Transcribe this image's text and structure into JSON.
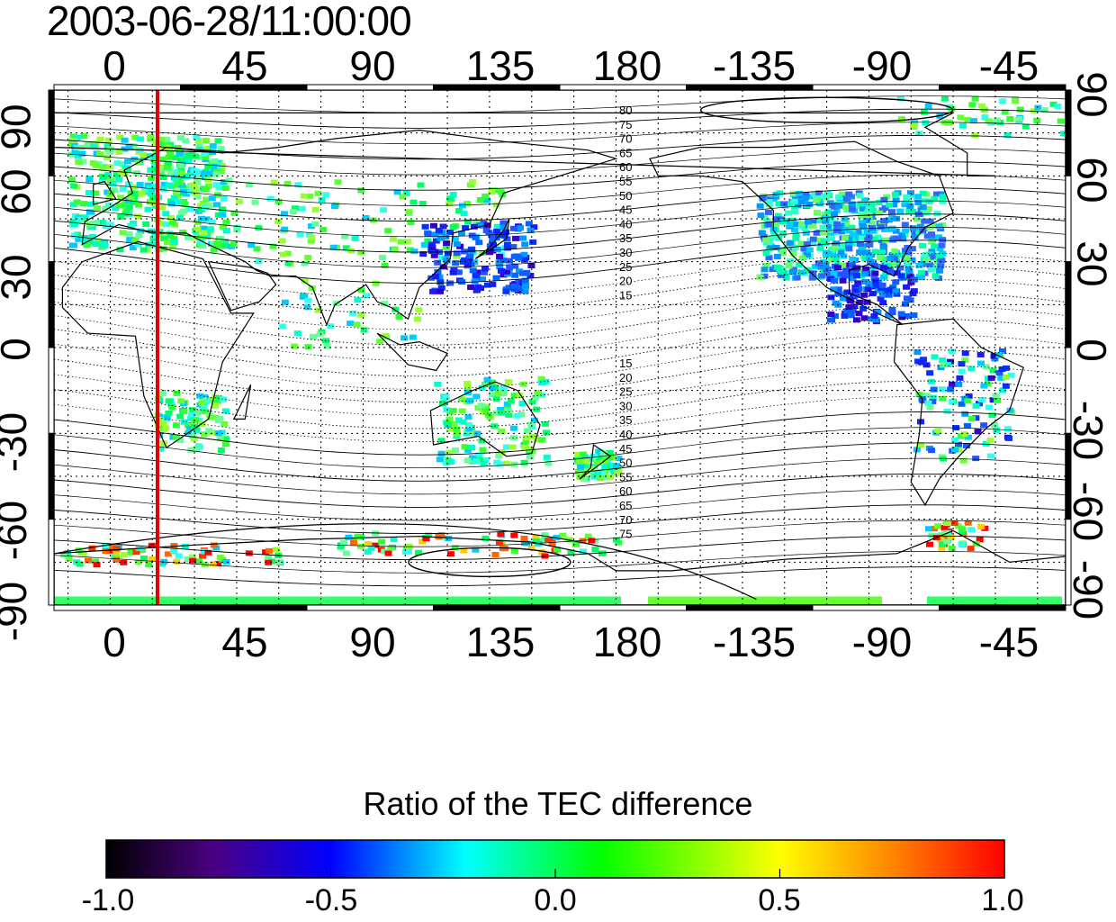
{
  "title": "2003-06-28/11:00:00",
  "lon_ticks": [
    "0",
    "45",
    "90",
    "135",
    "180",
    "-135",
    "-90",
    "-45"
  ],
  "lat_ticks": [
    "90",
    "60",
    "30",
    "0",
    "-30",
    "-60",
    "-90"
  ],
  "map": {
    "projection": "cylindrical equidistant",
    "lon_start": -20,
    "lon_end": 340,
    "lat_range": [
      -90,
      90
    ],
    "grid": true,
    "marker_line_longitude": 15,
    "marker_line_color": "#e00000",
    "contour_labels_north": [
      "80",
      "75",
      "70",
      "65",
      "60",
      "55",
      "50",
      "45",
      "40",
      "35",
      "30",
      "25",
      "20",
      "15"
    ],
    "contour_labels_south": [
      "15",
      "20",
      "25",
      "30",
      "35",
      "40",
      "45",
      "50",
      "55",
      "60",
      "65",
      "70",
      "75"
    ]
  },
  "colorbar": {
    "title": "Ratio of the TEC difference",
    "range": [
      -1.0,
      1.0
    ],
    "ticks": [
      "-1.0",
      "-0.5",
      "0.0",
      "0.5",
      "1.0"
    ],
    "colors": [
      "#000000",
      "#5a007a",
      "#0000ff",
      "#00ffff",
      "#00ff00",
      "#ffff00",
      "#ff0000"
    ]
  }
}
